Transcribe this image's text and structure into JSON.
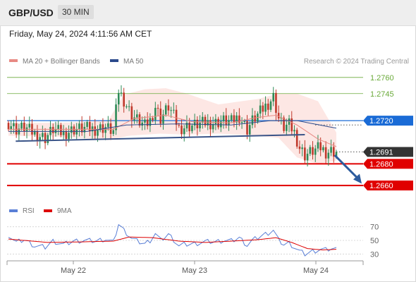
{
  "header": {
    "symbol": "GBP/USD",
    "timeframe": "30 MIN"
  },
  "datetime": "Friday, May 24, 2024 4:11:56 AM CET",
  "colors": {
    "bull": "#2e8b57",
    "bear": "#c0392b",
    "support": "#e00000",
    "pivot": "#1a6bd6",
    "resistance": "#6aaa3a",
    "bollinger_fill": "#fde4e1",
    "ma20": "#e88a84",
    "ma50": "#2b4a8c",
    "trendline": "#3a5488",
    "rsi": "#5a7fd6",
    "rsi_ma": "#dd0000",
    "current": "#333333",
    "arrow": "#2d5c9e"
  },
  "chart_data": [
    {
      "type": "candlestick",
      "title": "",
      "legend": {
        "placement": "top-left",
        "items": [
          "MA 20 + Bollinger Bands",
          "MA 50"
        ]
      },
      "watermark": "Research © 2024 Trading Central",
      "ylim": [
        1.2647,
        1.2769
      ],
      "x_ticks": [
        "May 22",
        "May 23",
        "May 24"
      ],
      "levels": {
        "resistance": [
          1.276,
          1.2745
        ],
        "pivot": 1.272,
        "current": 1.2691,
        "support": [
          1.268,
          1.266
        ]
      },
      "price_labels": [
        "1.2760",
        "1.2745",
        "1.2720",
        "1.2691",
        "1.2680",
        "1.2660"
      ],
      "candle_count": 126,
      "price_anchors": [
        [
          0,
          1.2718
        ],
        [
          3,
          1.2712
        ],
        [
          6,
          1.2714
        ],
        [
          10,
          1.2708
        ],
        [
          14,
          1.2704
        ],
        [
          17,
          1.2712
        ],
        [
          21,
          1.2708
        ],
        [
          25,
          1.2712
        ],
        [
          29,
          1.2713
        ],
        [
          33,
          1.2712
        ],
        [
          37,
          1.2714
        ],
        [
          40,
          1.271
        ],
        [
          42,
          1.2748
        ],
        [
          44,
          1.2739
        ],
        [
          47,
          1.2725
        ],
        [
          49,
          1.2721
        ],
        [
          52,
          1.2715
        ],
        [
          54,
          1.272
        ],
        [
          56,
          1.2733
        ],
        [
          58,
          1.2722
        ],
        [
          61,
          1.2733
        ],
        [
          63,
          1.2724
        ],
        [
          65,
          1.2713
        ],
        [
          67,
          1.2714
        ],
        [
          71,
          1.2716
        ],
        [
          75,
          1.2718
        ],
        [
          79,
          1.2718
        ],
        [
          82,
          1.272
        ],
        [
          85,
          1.2719
        ],
        [
          88,
          1.2724
        ],
        [
          91,
          1.2712
        ],
        [
          93,
          1.272
        ],
        [
          96,
          1.2728
        ],
        [
          99,
          1.2736
        ],
        [
          101,
          1.2742
        ],
        [
          103,
          1.2722
        ],
        [
          105,
          1.2714
        ],
        [
          107,
          1.2716
        ],
        [
          109,
          1.2709
        ],
        [
          111,
          1.2695
        ],
        [
          113,
          1.2688
        ],
        [
          116,
          1.2692
        ],
        [
          119,
          1.2695
        ],
        [
          121,
          1.2691
        ],
        [
          123,
          1.2692
        ],
        [
          125,
          1.2691
        ]
      ],
      "ma20": [
        [
          0,
          1.2712
        ],
        [
          20,
          1.2712
        ],
        [
          40,
          1.2712
        ],
        [
          48,
          1.2722
        ],
        [
          60,
          1.2725
        ],
        [
          70,
          1.2719
        ],
        [
          85,
          1.2718
        ],
        [
          95,
          1.2723
        ],
        [
          102,
          1.2725
        ],
        [
          110,
          1.2716
        ],
        [
          118,
          1.2703
        ],
        [
          125,
          1.2696
        ]
      ],
      "bb_upper": [
        [
          0,
          1.2718
        ],
        [
          20,
          1.2718
        ],
        [
          38,
          1.272
        ],
        [
          44,
          1.2744
        ],
        [
          52,
          1.2749
        ],
        [
          60,
          1.275
        ],
        [
          68,
          1.2745
        ],
        [
          80,
          1.2735
        ],
        [
          95,
          1.274
        ],
        [
          103,
          1.2745
        ],
        [
          110,
          1.2745
        ],
        [
          118,
          1.2738
        ],
        [
          125,
          1.2709
        ]
      ],
      "bb_lower": [
        [
          0,
          1.2706
        ],
        [
          20,
          1.2705
        ],
        [
          38,
          1.2702
        ],
        [
          46,
          1.2706
        ],
        [
          58,
          1.2708
        ],
        [
          68,
          1.2707
        ],
        [
          80,
          1.2708
        ],
        [
          95,
          1.2706
        ],
        [
          103,
          1.2704
        ],
        [
          110,
          1.2686
        ],
        [
          118,
          1.268
        ],
        [
          125,
          1.2683
        ]
      ],
      "ma50": [
        [
          0,
          1.271
        ],
        [
          30,
          1.271
        ],
        [
          45,
          1.2716
        ],
        [
          65,
          1.2717
        ],
        [
          85,
          1.2716
        ],
        [
          100,
          1.272
        ],
        [
          110,
          1.272
        ],
        [
          125,
          1.2713
        ]
      ],
      "trendline": [
        [
          6,
          1.2701
        ],
        [
          113,
          1.2707
        ]
      ],
      "forecast_arrow": [
        [
          126,
          1.2688
        ],
        [
          134,
          1.2661
        ]
      ]
    },
    {
      "type": "line",
      "legend": {
        "placement": "top-left",
        "items": [
          "RSI",
          "9MA"
        ]
      },
      "ylim": [
        20,
        80
      ],
      "y_ticks": [
        70,
        50,
        30
      ],
      "series": [
        {
          "name": "RSI",
          "points": [
            [
              0,
              58
            ],
            [
              3,
              47
            ],
            [
              6,
              51
            ],
            [
              10,
              42
            ],
            [
              14,
              40
            ],
            [
              17,
              49
            ],
            [
              21,
              44
            ],
            [
              25,
              49
            ],
            [
              29,
              50
            ],
            [
              33,
              49
            ],
            [
              37,
              52
            ],
            [
              40,
              47
            ],
            [
              42,
              74
            ],
            [
              44,
              65
            ],
            [
              47,
              53
            ],
            [
              49,
              49
            ],
            [
              52,
              45
            ],
            [
              54,
              50
            ],
            [
              56,
              60
            ],
            [
              58,
              50
            ],
            [
              61,
              59
            ],
            [
              63,
              51
            ],
            [
              65,
              42
            ],
            [
              67,
              44
            ],
            [
              71,
              45
            ],
            [
              75,
              48
            ],
            [
              79,
              48
            ],
            [
              82,
              50
            ],
            [
              85,
              49
            ],
            [
              88,
              54
            ],
            [
              91,
              43
            ],
            [
              93,
              50
            ],
            [
              96,
              56
            ],
            [
              99,
              61
            ],
            [
              101,
              65
            ],
            [
              103,
              50
            ],
            [
              105,
              44
            ],
            [
              107,
              46
            ],
            [
              109,
              40
            ],
            [
              111,
              34
            ],
            [
              113,
              30
            ],
            [
              116,
              34
            ],
            [
              119,
              37
            ],
            [
              121,
              36
            ],
            [
              123,
              38
            ],
            [
              125,
              37
            ]
          ]
        },
        {
          "name": "9MA",
          "points": [
            [
              0,
              52
            ],
            [
              15,
              47
            ],
            [
              30,
              48
            ],
            [
              40,
              49
            ],
            [
              46,
              55
            ],
            [
              55,
              54
            ],
            [
              65,
              49
            ],
            [
              75,
              47
            ],
            [
              85,
              49
            ],
            [
              95,
              51
            ],
            [
              102,
              54
            ],
            [
              108,
              47
            ],
            [
              114,
              38
            ],
            [
              120,
              36
            ],
            [
              125,
              37
            ]
          ]
        }
      ]
    }
  ]
}
